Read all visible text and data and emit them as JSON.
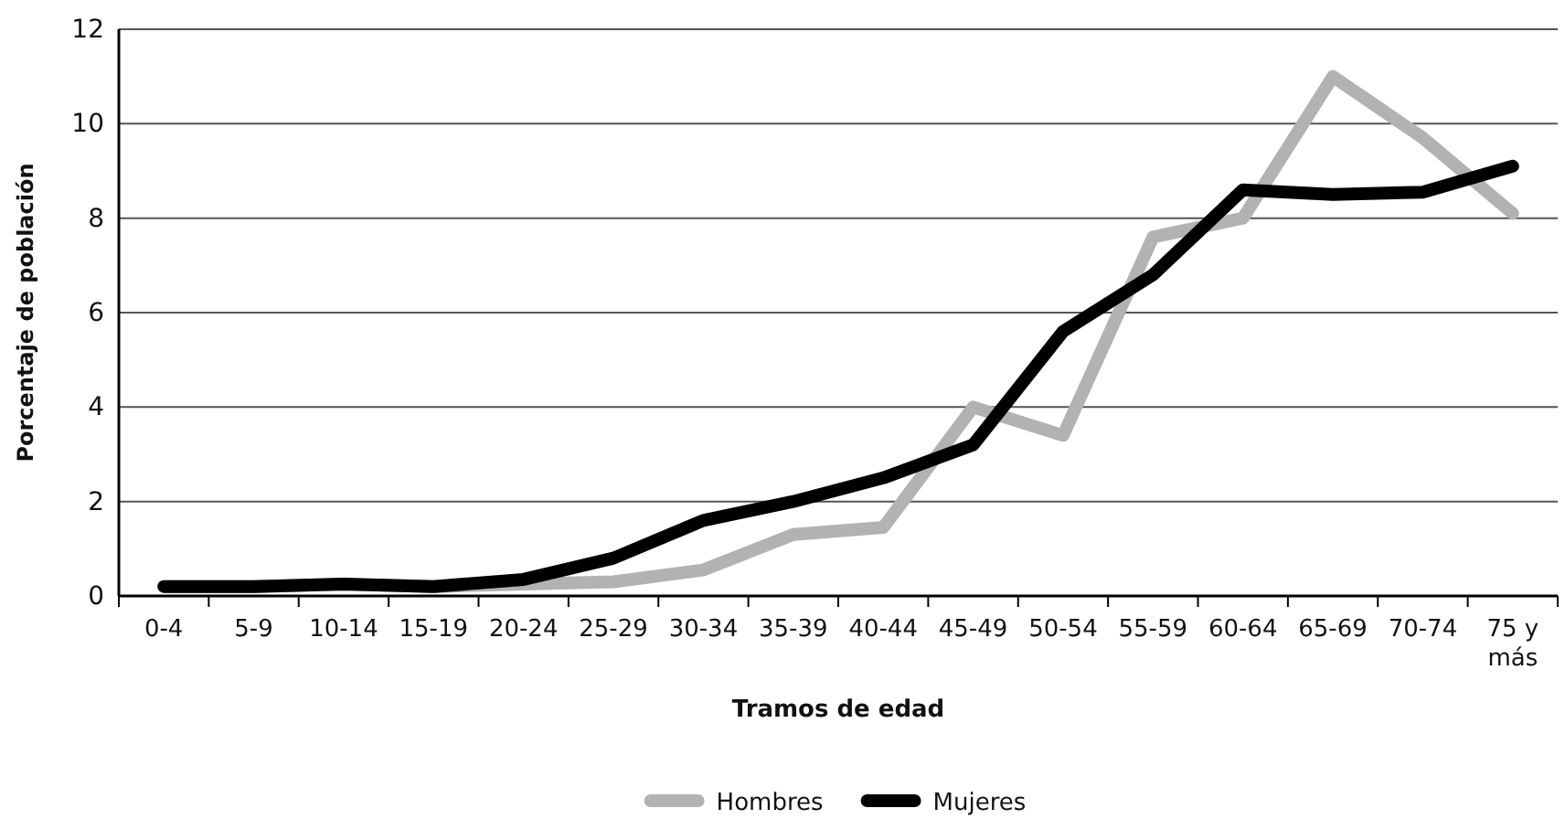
{
  "chart_data": {
    "type": "line",
    "xlabel": "Tramos de edad",
    "ylabel": "Porcentaje de población",
    "categories": [
      "0-4",
      "5-9",
      "10-14",
      "15-19",
      "20-24",
      "25-29",
      "30-34",
      "35-39",
      "40-44",
      "45-49",
      "50-54",
      "55-59",
      "60-64",
      "65-69",
      "70-74",
      "75 y más"
    ],
    "series": [
      {
        "name": "Hombres",
        "color": "#b2b2b2",
        "values": [
          0.2,
          0.2,
          0.25,
          0.2,
          0.25,
          0.3,
          0.55,
          1.3,
          1.45,
          4.0,
          3.4,
          7.6,
          8.0,
          11.0,
          9.7,
          8.1
        ]
      },
      {
        "name": "Mujeres",
        "color": "#000000",
        "values": [
          0.2,
          0.2,
          0.25,
          0.2,
          0.35,
          0.8,
          1.6,
          2.0,
          2.5,
          3.2,
          5.6,
          6.8,
          8.6,
          8.5,
          8.55,
          9.1
        ]
      }
    ],
    "ylim": [
      0,
      12
    ],
    "yticks": [
      0,
      2,
      4,
      6,
      8,
      10,
      12
    ],
    "grid": "y",
    "legend": "bottom",
    "marker": "none",
    "line_style": "solid"
  }
}
